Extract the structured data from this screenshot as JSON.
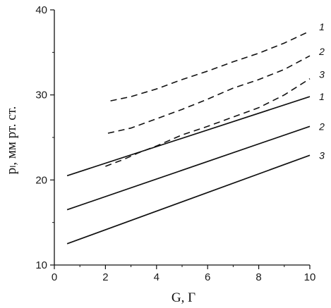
{
  "chart_data": {
    "type": "line",
    "xlabel": "G, Г",
    "ylabel": "pₗ, мм рт. ст.",
    "xlim": [
      0,
      10
    ],
    "ylim": [
      10,
      40
    ],
    "xticks": [
      0,
      2,
      4,
      6,
      8,
      10
    ],
    "yticks": [
      10,
      20,
      30,
      40
    ],
    "grid": false,
    "line_color": "#111111",
    "series": [
      {
        "name": "1",
        "style": "solid",
        "x": [
          0.5,
          10
        ],
        "y": [
          20.5,
          29.8
        ]
      },
      {
        "name": "2",
        "style": "solid",
        "x": [
          0.5,
          10
        ],
        "y": [
          16.5,
          26.3
        ]
      },
      {
        "name": "3",
        "style": "solid",
        "x": [
          0.5,
          10
        ],
        "y": [
          12.5,
          22.9
        ]
      },
      {
        "name": "1",
        "style": "dashed",
        "x": [
          2.2,
          3,
          4,
          5,
          6,
          7,
          8,
          9,
          10
        ],
        "y": [
          29.3,
          29.8,
          30.7,
          31.8,
          32.8,
          33.9,
          34.9,
          36.1,
          37.5
        ]
      },
      {
        "name": "2",
        "style": "dashed",
        "x": [
          2.1,
          3,
          4,
          5,
          6,
          7,
          8,
          9,
          10
        ],
        "y": [
          25.5,
          26.1,
          27.2,
          28.3,
          29.5,
          30.8,
          31.8,
          33.0,
          34.6
        ]
      },
      {
        "name": "3",
        "style": "dashed",
        "x": [
          2.0,
          2.7,
          3.3,
          4,
          5,
          6,
          7,
          8,
          9,
          10
        ],
        "y": [
          21.6,
          22.4,
          23.2,
          24.0,
          25.3,
          26.3,
          27.4,
          28.5,
          30.0,
          31.9
        ]
      }
    ]
  }
}
